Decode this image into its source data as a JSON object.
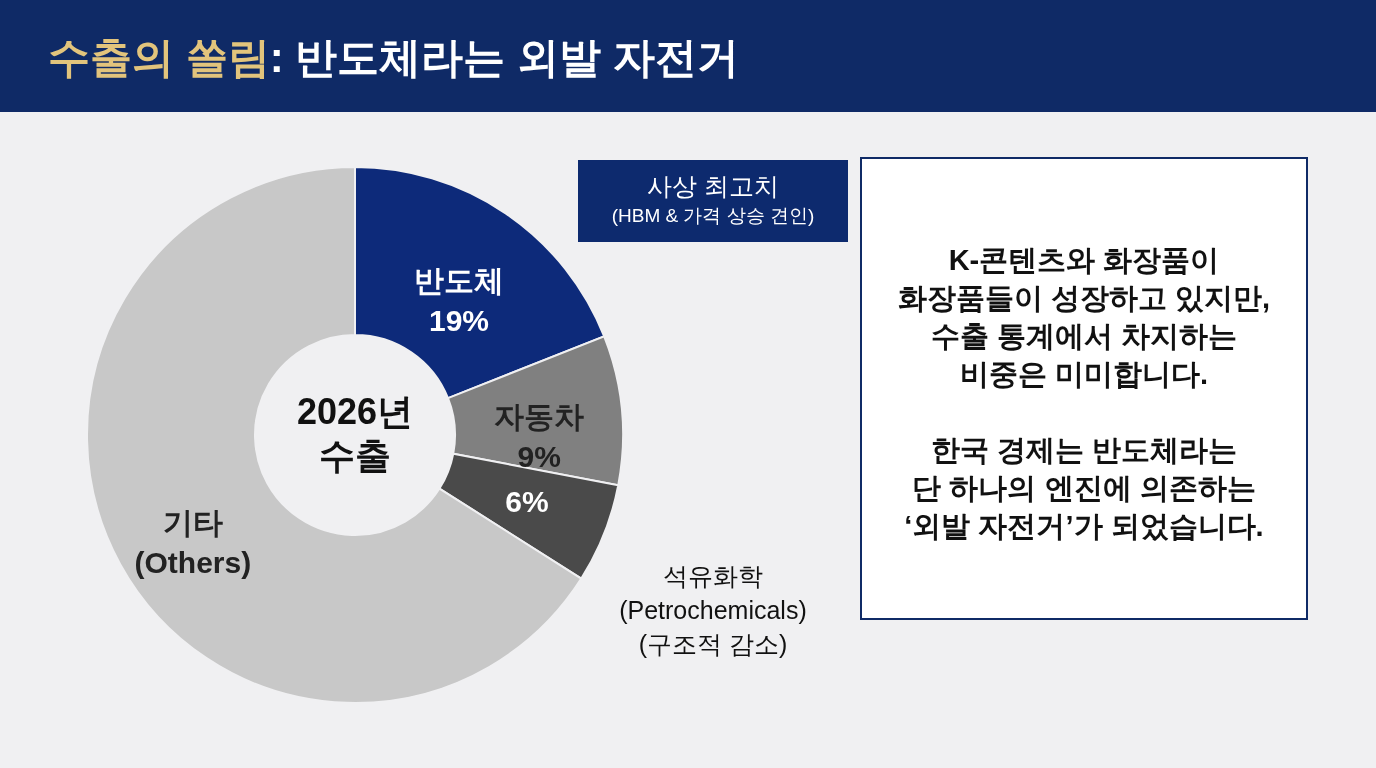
{
  "chart_data": {
    "type": "donut",
    "title": "수출의 쏠림: 반도체라는 외발 자전거",
    "categories": [
      "반도체",
      "자동차",
      "석유화학 (Petrochemicals) (구조적 감소)",
      "기타 (Others)"
    ],
    "values": [
      19,
      9,
      6,
      66
    ],
    "colors": [
      "#0d2a7a",
      "#808080",
      "#4a4a4a",
      "#c8c8c8"
    ],
    "value_labels": [
      "19%",
      "9%",
      "6%",
      null
    ],
    "annotations": [
      "2026년 수출",
      "사상 최고치 (HBM & 가격 상승 견인)",
      "K-콘텐츠와 화장품이\n화장품들이 성장하고 있지만,\n수출 통계에서 차지하는\n비중은 미미합니다.",
      "한국 경제는 반도체라는\n단 하나의 엔진에 의존하는\n‘외발 자전거’가 되었습니다."
    ]
  }
}
